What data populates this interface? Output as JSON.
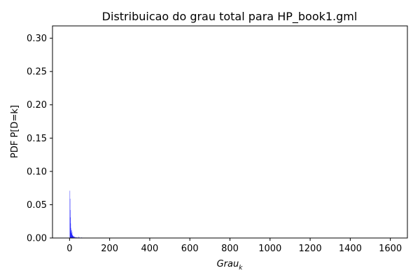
{
  "chart_data": {
    "type": "bar",
    "title": "Distribuicao do grau total para HP_book1.gml",
    "xlabel": "Grau",
    "xlabel_subscript": "k",
    "ylabel": "PDF P[D=k]",
    "xlim": [
      -85,
      1685
    ],
    "ylim": [
      0,
      0.3185
    ],
    "xticks": [
      0,
      200,
      400,
      600,
      800,
      1000,
      1200,
      1400,
      1600
    ],
    "yticks": [
      0.0,
      0.05,
      0.1,
      0.15,
      0.2,
      0.25,
      0.3
    ],
    "ytick_labels": [
      "0.00",
      "0.05",
      "0.10",
      "0.15",
      "0.20",
      "0.25",
      "0.30"
    ],
    "bar_color": "#0000ff",
    "bar_alpha": 0.65,
    "grid": false,
    "x": [
      1,
      2,
      3,
      4,
      5,
      6,
      7,
      8,
      9,
      10,
      11,
      12,
      13,
      14,
      15,
      16,
      17,
      18,
      19,
      20,
      22,
      24,
      26,
      28,
      30,
      33,
      36,
      40,
      45,
      50,
      60
    ],
    "values": [
      0.071,
      0.059,
      0.042,
      0.031,
      0.022,
      0.015,
      0.011,
      0.008,
      0.007,
      0.006,
      0.012,
      0.009,
      0.005,
      0.004,
      0.004,
      0.003,
      0.003,
      0.003,
      0.002,
      0.002,
      0.002,
      0.002,
      0.002,
      0.001,
      0.001,
      0.001,
      0.001,
      0.001,
      0.002,
      0.001,
      0.001
    ]
  }
}
